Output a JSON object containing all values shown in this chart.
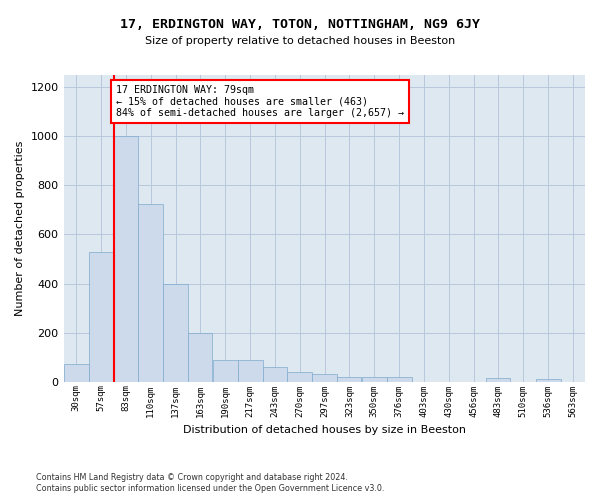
{
  "title": "17, ERDINGTON WAY, TOTON, NOTTINGHAM, NG9 6JY",
  "subtitle": "Size of property relative to detached houses in Beeston",
  "xlabel": "Distribution of detached houses by size in Beeston",
  "ylabel": "Number of detached properties",
  "bar_color": "#ccdaeb",
  "bar_edgecolor": "#7faace",
  "grid_color": "#b8c8dc",
  "background_color": "#dde8f0",
  "annotation_text": "17 ERDINGTON WAY: 79sqm\n← 15% of detached houses are smaller (463)\n84% of semi-detached houses are larger (2,657) →",
  "vline_x_bin": 2,
  "categories": [
    "30sqm",
    "57sqm",
    "83sqm",
    "110sqm",
    "137sqm",
    "163sqm",
    "190sqm",
    "217sqm",
    "243sqm",
    "270sqm",
    "297sqm",
    "323sqm",
    "350sqm",
    "376sqm",
    "403sqm",
    "430sqm",
    "456sqm",
    "483sqm",
    "510sqm",
    "536sqm",
    "563sqm"
  ],
  "bin_edges": [
    16.5,
    43.5,
    70.5,
    96.5,
    123.5,
    150.5,
    176.5,
    203.5,
    230.5,
    256.5,
    283.5,
    310.5,
    336.5,
    363.5,
    390.5,
    416.5,
    443.5,
    470.5,
    496.5,
    523.5,
    550.5,
    576.5
  ],
  "values": [
    70,
    530,
    1000,
    725,
    400,
    200,
    90,
    90,
    60,
    40,
    33,
    20,
    20,
    20,
    0,
    0,
    0,
    15,
    0,
    12,
    0
  ],
  "ylim": [
    0,
    1250
  ],
  "yticks": [
    0,
    200,
    400,
    600,
    800,
    1000,
    1200
  ],
  "footnote1": "Contains HM Land Registry data © Crown copyright and database right 2024.",
  "footnote2": "Contains public sector information licensed under the Open Government Licence v3.0."
}
